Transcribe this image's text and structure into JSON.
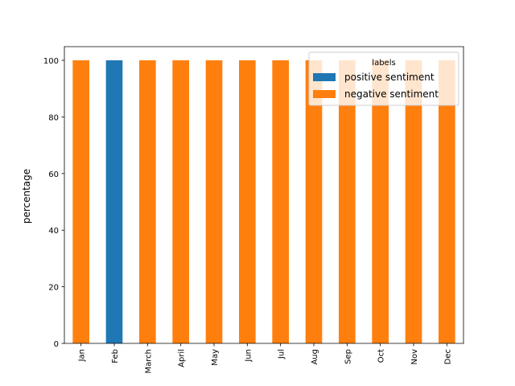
{
  "chart_data": {
    "type": "bar",
    "stacked": true,
    "categories": [
      "Jan",
      "Feb",
      "March",
      "April",
      "May",
      "Jun",
      "Jul",
      "Aug",
      "Sep",
      "Oct",
      "Nov",
      "Dec"
    ],
    "series": [
      {
        "name": "positive sentiment",
        "color": "#1f77b4",
        "values": [
          0,
          100,
          0,
          0,
          0,
          0,
          0,
          0,
          0,
          0,
          0,
          0
        ]
      },
      {
        "name": "negative sentiment",
        "color": "#ff7f0e",
        "values": [
          100,
          0,
          100,
          100,
          100,
          100,
          100,
          100,
          100,
          100,
          100,
          100
        ]
      }
    ],
    "title": "",
    "xlabel": "",
    "ylabel": "percentage",
    "ylim": [
      0,
      100
    ],
    "yticks": [
      0,
      20,
      40,
      60,
      80,
      100
    ],
    "grid": false,
    "legend": {
      "title": "labels",
      "placement": "upper-right"
    }
  }
}
